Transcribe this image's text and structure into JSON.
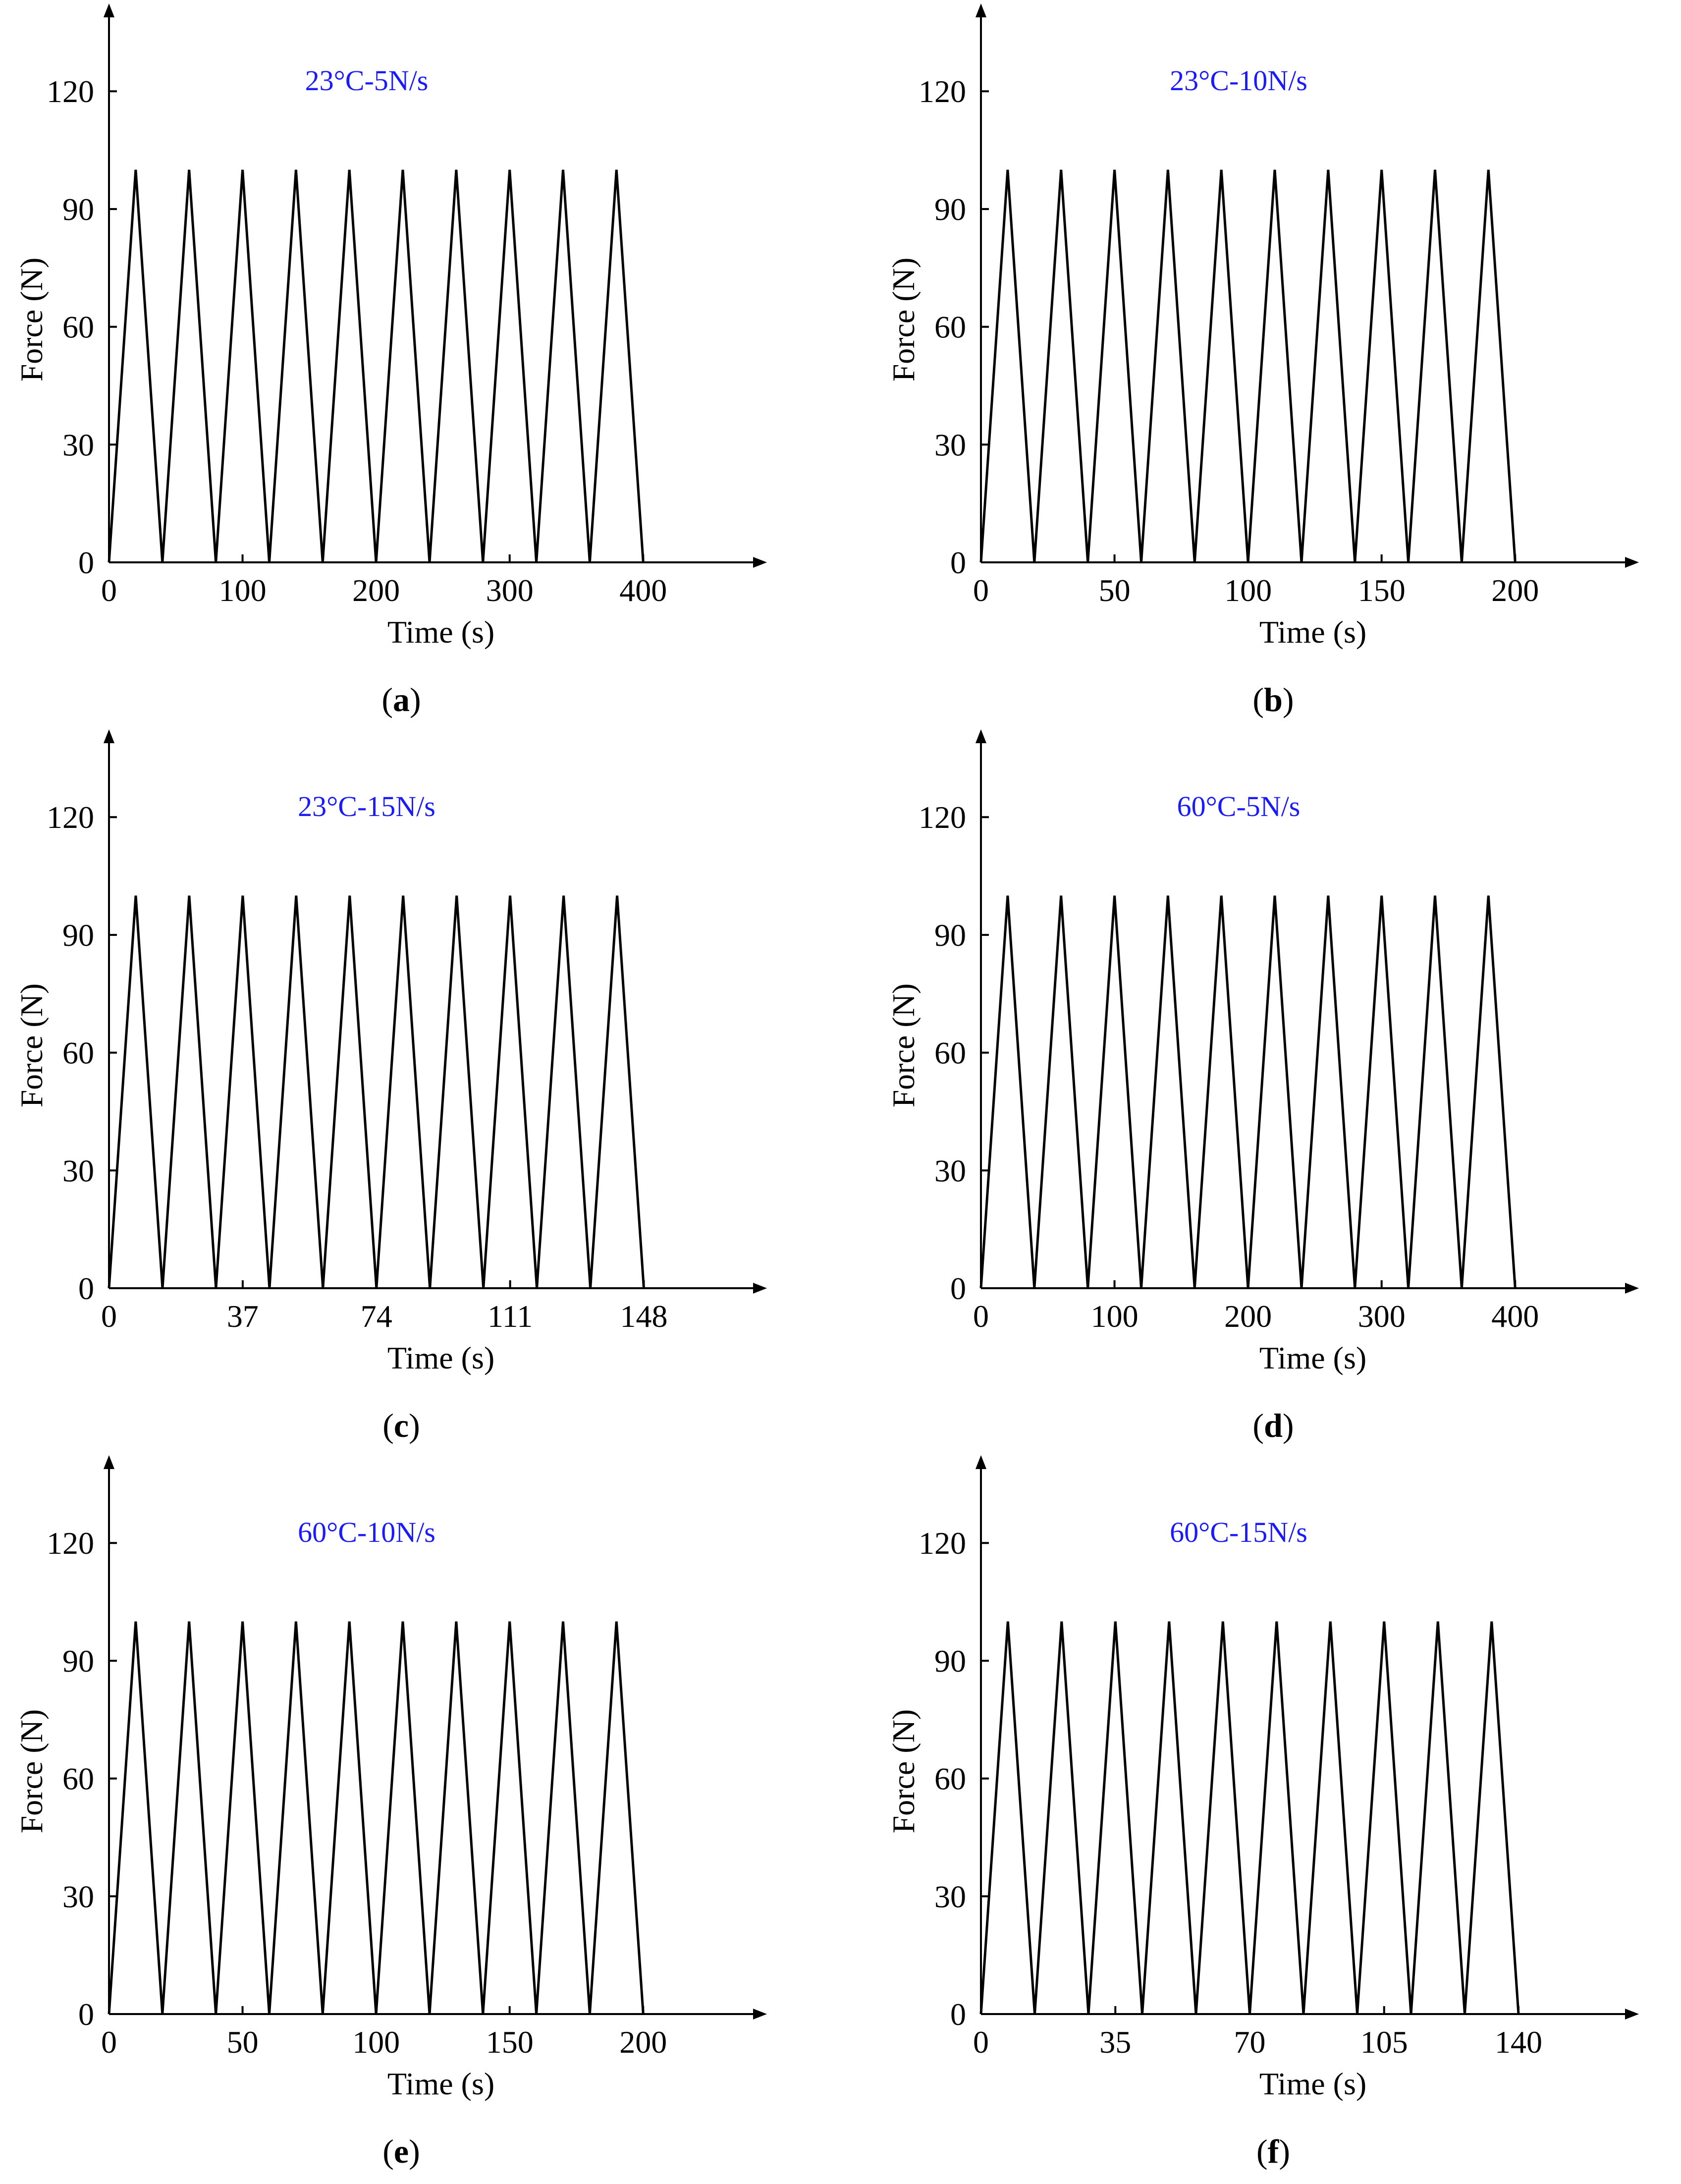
{
  "figure": {
    "panels": [
      {
        "letter": "a"
      },
      {
        "letter": "b"
      },
      {
        "letter": "c"
      },
      {
        "letter": "d"
      },
      {
        "letter": "e"
      },
      {
        "letter": "f"
      }
    ],
    "colors": {
      "title": "#1a1aff",
      "axis": "#000000",
      "line": "#000000"
    }
  },
  "chart_data": [
    {
      "type": "line",
      "title": "23°C-5N/s",
      "xlabel": "Time (s)",
      "ylabel": "Force (N)",
      "xlim": [
        0,
        460
      ],
      "ylim": [
        0,
        130
      ],
      "x_ticks": [
        0,
        100,
        200,
        300,
        400
      ],
      "y_ticks": [
        0,
        30,
        60,
        90,
        120
      ],
      "grid": false,
      "series": [
        {
          "x": [
            0,
            20,
            40,
            60,
            80,
            100,
            120,
            140,
            160,
            180,
            200,
            220,
            240,
            260,
            280,
            300,
            320,
            340,
            360,
            380,
            400
          ],
          "values": [
            0,
            100,
            0,
            100,
            0,
            100,
            0,
            100,
            0,
            100,
            0,
            100,
            0,
            100,
            0,
            100,
            0,
            100,
            0,
            100,
            0
          ]
        }
      ]
    },
    {
      "type": "line",
      "title": "23°C-10N/s",
      "xlabel": "Time (s)",
      "ylabel": "Force (N)",
      "xlim": [
        0,
        230
      ],
      "ylim": [
        0,
        130
      ],
      "x_ticks": [
        0,
        50,
        100,
        150,
        200
      ],
      "y_ticks": [
        0,
        30,
        60,
        90,
        120
      ],
      "grid": false,
      "series": [
        {
          "x": [
            0,
            10,
            20,
            30,
            40,
            50,
            60,
            70,
            80,
            90,
            100,
            110,
            120,
            130,
            140,
            150,
            160,
            170,
            180,
            190,
            200
          ],
          "values": [
            0,
            100,
            0,
            100,
            0,
            100,
            0,
            100,
            0,
            100,
            0,
            100,
            0,
            100,
            0,
            100,
            0,
            100,
            0,
            100,
            0
          ]
        }
      ]
    },
    {
      "type": "line",
      "title": "23°C-15N/s",
      "xlabel": "Time (s)",
      "ylabel": "Force (N)",
      "xlim": [
        0,
        170
      ],
      "ylim": [
        0,
        130
      ],
      "x_ticks": [
        0,
        37,
        74,
        111,
        148
      ],
      "y_ticks": [
        0,
        30,
        60,
        90,
        120
      ],
      "grid": false,
      "series": [
        {
          "x": [
            0,
            7.4,
            14.8,
            22.2,
            29.6,
            37,
            44.4,
            51.8,
            59.2,
            66.6,
            74,
            81.4,
            88.8,
            96.2,
            103.6,
            111,
            118.4,
            125.8,
            133.2,
            140.6,
            148
          ],
          "values": [
            0,
            100,
            0,
            100,
            0,
            100,
            0,
            100,
            0,
            100,
            0,
            100,
            0,
            100,
            0,
            100,
            0,
            100,
            0,
            100,
            0
          ]
        }
      ]
    },
    {
      "type": "line",
      "title": "60°C-5N/s",
      "xlabel": "Time (s)",
      "ylabel": "Force (N)",
      "xlim": [
        0,
        460
      ],
      "ylim": [
        0,
        130
      ],
      "x_ticks": [
        0,
        100,
        200,
        300,
        400
      ],
      "y_ticks": [
        0,
        30,
        60,
        90,
        120
      ],
      "grid": false,
      "series": [
        {
          "x": [
            0,
            20,
            40,
            60,
            80,
            100,
            120,
            140,
            160,
            180,
            200,
            220,
            240,
            260,
            280,
            300,
            320,
            340,
            360,
            380,
            400
          ],
          "values": [
            0,
            100,
            0,
            100,
            0,
            100,
            0,
            100,
            0,
            100,
            0,
            100,
            0,
            100,
            0,
            100,
            0,
            100,
            0,
            100,
            0
          ]
        }
      ]
    },
    {
      "type": "line",
      "title": "60°C-10N/s",
      "xlabel": "Time (s)",
      "ylabel": "Force (N)",
      "xlim": [
        0,
        230
      ],
      "ylim": [
        0,
        130
      ],
      "x_ticks": [
        0,
        50,
        100,
        150,
        200
      ],
      "y_ticks": [
        0,
        30,
        60,
        90,
        120
      ],
      "grid": false,
      "series": [
        {
          "x": [
            0,
            10,
            20,
            30,
            40,
            50,
            60,
            70,
            80,
            90,
            100,
            110,
            120,
            130,
            140,
            150,
            160,
            170,
            180,
            190,
            200
          ],
          "values": [
            0,
            100,
            0,
            100,
            0,
            100,
            0,
            100,
            0,
            100,
            0,
            100,
            0,
            100,
            0,
            100,
            0,
            100,
            0,
            100,
            0
          ]
        }
      ]
    },
    {
      "type": "line",
      "title": "60°C-15N/s",
      "xlabel": "Time (s)",
      "ylabel": "Force (N)",
      "xlim": [
        0,
        160
      ],
      "ylim": [
        0,
        130
      ],
      "x_ticks": [
        0,
        35,
        70,
        105,
        140
      ],
      "y_ticks": [
        0,
        30,
        60,
        90,
        120
      ],
      "grid": false,
      "series": [
        {
          "x": [
            0,
            7,
            14,
            21,
            28,
            35,
            42,
            49,
            56,
            63,
            70,
            77,
            84,
            91,
            98,
            105,
            112,
            119,
            126,
            133,
            140
          ],
          "values": [
            0,
            100,
            0,
            100,
            0,
            100,
            0,
            100,
            0,
            100,
            0,
            100,
            0,
            100,
            0,
            100,
            0,
            100,
            0,
            100,
            0
          ]
        }
      ]
    }
  ]
}
